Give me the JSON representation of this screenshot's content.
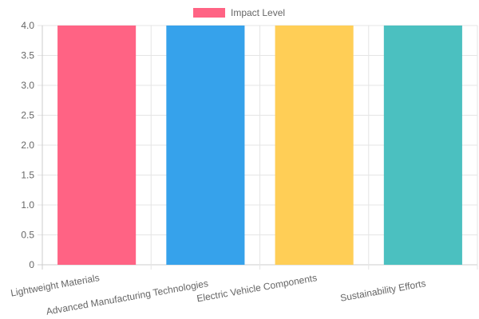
{
  "chart_data": {
    "type": "bar",
    "categories": [
      "Lightweight Materials",
      "Advanced Manufacturing Technologies",
      "Electric Vehicle Components",
      "Sustainability Efforts"
    ],
    "series": [
      {
        "name": "Impact Level",
        "values": [
          4,
          4,
          4,
          4
        ],
        "colors": [
          "#FF6384",
          "#36A2EB",
          "#FFCE56",
          "#4BC0C0"
        ]
      }
    ],
    "legend": {
      "position": "top",
      "swatch_color": "#FF6384",
      "label": "Impact Level"
    },
    "ylim": [
      0,
      4
    ],
    "yticks": [
      "0",
      "0.5",
      "1.0",
      "1.5",
      "2.0",
      "2.5",
      "3.0",
      "3.5",
      "4.0"
    ],
    "grid": true,
    "grid_color": "#e5e5e5",
    "axis_color": "#cccccc",
    "tick_text_color": "#666666"
  }
}
